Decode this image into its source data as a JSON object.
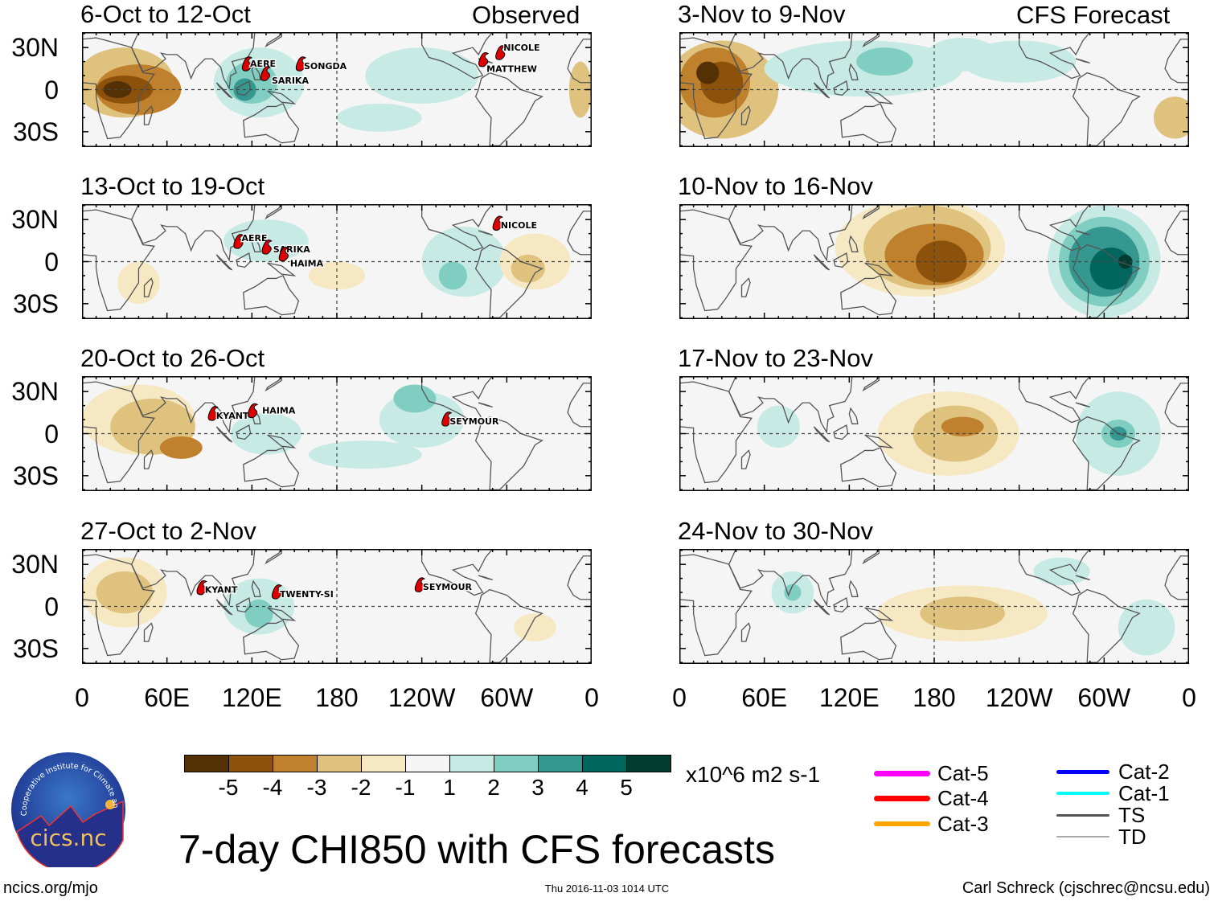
{
  "header": {
    "observed_label": "Observed",
    "forecast_label": "CFS Forecast"
  },
  "title": "7-day CHI850 with CFS forecasts",
  "lat_labels": [
    "30N",
    "0",
    "30S"
  ],
  "lon_labels": [
    "0",
    "60E",
    "120E",
    "180",
    "120W",
    "60W",
    "0"
  ],
  "colorbar": {
    "colors": [
      "#543005",
      "#8c510a",
      "#bf812d",
      "#dfc27d",
      "#f6e8c3",
      "#f5f5f5",
      "#c7eae5",
      "#80cdc1",
      "#35978f",
      "#01665e",
      "#003c30"
    ],
    "labels": [
      "-5",
      "-4",
      "-3",
      "-2",
      "-1",
      "1",
      "2",
      "3",
      "4",
      "5"
    ],
    "units": "x10^6 m2 s-1"
  },
  "legend": [
    {
      "label": "Cat-5",
      "color": "#ff00ff"
    },
    {
      "label": "Cat-4",
      "color": "#ff0000"
    },
    {
      "label": "Cat-3",
      "color": "#ffa500"
    },
    {
      "label": "Cat-2",
      "color": "#0000ff"
    },
    {
      "label": "Cat-1",
      "color": "#00ffff"
    },
    {
      "label": "TS",
      "color": "#555555"
    },
    {
      "label": "TD",
      "color": "#aaaaaa"
    }
  ],
  "panels": [
    {
      "title": "6-Oct to 12-Oct",
      "type": "observed",
      "anomalies": [
        [
          30,
          5,
          35,
          25,
          -2
        ],
        [
          40,
          0,
          30,
          18,
          -3
        ],
        [
          30,
          0,
          20,
          10,
          -4
        ],
        [
          25,
          0,
          10,
          6,
          -5
        ],
        [
          125,
          5,
          32,
          25,
          1
        ],
        [
          120,
          5,
          18,
          15,
          2
        ],
        [
          115,
          0,
          8,
          8,
          3
        ],
        [
          240,
          10,
          40,
          20,
          1
        ],
        [
          210,
          -20,
          30,
          10,
          1
        ],
        [
          352,
          0,
          8,
          20,
          -2
        ]
      ],
      "storms": [
        {
          "name": "AERE",
          "lon": 117,
          "lat": 17
        },
        {
          "name": "SONGDA",
          "lon": 155,
          "lat": 17
        },
        {
          "name": "SARIKA",
          "lon": 130,
          "lat": 10
        },
        {
          "name": "MATTHEW",
          "lon": 284,
          "lat": 20
        },
        {
          "name": "NICOLE",
          "lon": 296,
          "lat": 25
        }
      ]
    },
    {
      "title": "3-Nov to 9-Nov",
      "type": "forecast",
      "anomalies": [
        [
          30,
          0,
          40,
          35,
          -2
        ],
        [
          25,
          5,
          25,
          25,
          -3
        ],
        [
          30,
          5,
          15,
          15,
          -4
        ],
        [
          20,
          12,
          8,
          8,
          -5
        ],
        [
          130,
          15,
          70,
          20,
          1
        ],
        [
          145,
          20,
          20,
          10,
          2
        ],
        [
          200,
          25,
          25,
          12,
          1
        ],
        [
          240,
          20,
          40,
          15,
          1
        ],
        [
          350,
          -20,
          15,
          15,
          -2
        ]
      ],
      "storms": []
    },
    {
      "title": "13-Oct to 19-Oct",
      "type": "observed",
      "anomalies": [
        [
          40,
          -15,
          15,
          15,
          -1
        ],
        [
          180,
          -10,
          20,
          10,
          -1
        ],
        [
          130,
          15,
          30,
          15,
          1
        ],
        [
          270,
          0,
          30,
          25,
          1
        ],
        [
          262,
          -10,
          10,
          10,
          2
        ],
        [
          320,
          0,
          25,
          20,
          -1
        ],
        [
          315,
          -5,
          12,
          10,
          -2
        ]
      ],
      "storms": [
        {
          "name": "NICOLE",
          "lon": 294,
          "lat": 26
        },
        {
          "name": "AERE",
          "lon": 111,
          "lat": 13
        },
        {
          "name": "SARIKA",
          "lon": 131,
          "lat": 9
        },
        {
          "name": "HAIMA",
          "lon": 143,
          "lat": 4
        }
      ]
    },
    {
      "title": "10-Nov to 16-Nov",
      "type": "forecast",
      "anomalies": [
        [
          170,
          10,
          60,
          35,
          -1
        ],
        [
          175,
          10,
          45,
          30,
          -2
        ],
        [
          180,
          5,
          35,
          22,
          -3
        ],
        [
          185,
          0,
          18,
          15,
          -4
        ],
        [
          300,
          0,
          40,
          40,
          1
        ],
        [
          300,
          0,
          32,
          32,
          2
        ],
        [
          300,
          0,
          25,
          25,
          3
        ],
        [
          305,
          -5,
          15,
          15,
          4
        ],
        [
          315,
          0,
          5,
          5,
          5
        ]
      ],
      "storms": []
    },
    {
      "title": "20-Oct to 26-Oct",
      "type": "observed",
      "anomalies": [
        [
          40,
          10,
          40,
          25,
          -1
        ],
        [
          50,
          5,
          30,
          20,
          -2
        ],
        [
          70,
          -10,
          15,
          8,
          -3
        ],
        [
          130,
          0,
          25,
          15,
          1
        ],
        [
          240,
          10,
          30,
          20,
          1
        ],
        [
          235,
          25,
          15,
          10,
          2
        ],
        [
          200,
          -15,
          40,
          10,
          1
        ]
      ],
      "storms": [
        {
          "name": "KYANT",
          "lon": 93,
          "lat": 13
        },
        {
          "name": "HAIMA",
          "lon": 121,
          "lat": 15
        },
        {
          "name": "SEYMOUR",
          "lon": 258,
          "lat": 9
        }
      ]
    },
    {
      "title": "17-Nov to 23-Nov",
      "type": "forecast",
      "anomalies": [
        [
          190,
          0,
          50,
          30,
          -1
        ],
        [
          195,
          0,
          30,
          20,
          -2
        ],
        [
          200,
          5,
          15,
          7,
          -3
        ],
        [
          310,
          0,
          30,
          30,
          1
        ],
        [
          310,
          0,
          12,
          10,
          2
        ],
        [
          310,
          0,
          6,
          5,
          3
        ],
        [
          70,
          5,
          15,
          15,
          1
        ]
      ],
      "storms": []
    },
    {
      "title": "27-Oct to 2-Nov",
      "type": "observed",
      "anomalies": [
        [
          30,
          10,
          30,
          25,
          -1
        ],
        [
          30,
          10,
          20,
          15,
          -2
        ],
        [
          125,
          0,
          25,
          20,
          1
        ],
        [
          125,
          -5,
          10,
          10,
          2
        ],
        [
          320,
          -15,
          15,
          10,
          -1
        ]
      ],
      "storms": [
        {
          "name": "KYANT",
          "lon": 85,
          "lat": 12
        },
        {
          "name": "TWENTY-SI",
          "lon": 138,
          "lat": 9
        },
        {
          "name": "SEYMOUR",
          "lon": 239,
          "lat": 14
        }
      ]
    },
    {
      "title": "24-Nov to 30-Nov",
      "type": "forecast",
      "anomalies": [
        [
          200,
          -5,
          60,
          20,
          -1
        ],
        [
          200,
          -5,
          30,
          12,
          -2
        ],
        [
          80,
          10,
          15,
          15,
          1
        ],
        [
          80,
          10,
          6,
          6,
          2
        ],
        [
          330,
          -15,
          20,
          20,
          1
        ],
        [
          270,
          25,
          20,
          10,
          1
        ]
      ],
      "storms": []
    }
  ],
  "footer": {
    "url": "ncics.org/mjo",
    "timestamp": "Thu 2016-11-03 1014 UTC",
    "credit": "Carl Schreck (cjschrec@ncsu.edu)"
  },
  "logo": {
    "name": "cics.nc",
    "text": "Cooperative Institute for Climate and Satellites"
  }
}
